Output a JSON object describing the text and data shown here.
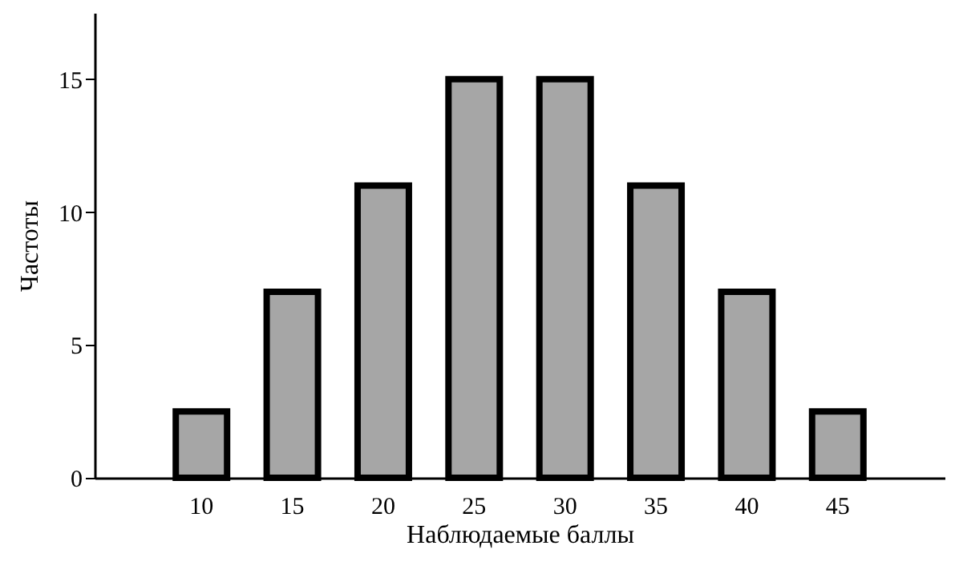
{
  "chart_data": {
    "type": "bar",
    "xlabel": "Наблюдаемые баллы",
    "ylabel": "Частоты",
    "categories": [
      "10",
      "15",
      "20",
      "25",
      "30",
      "35",
      "40",
      "45"
    ],
    "values": [
      2.5,
      7,
      11,
      15,
      15,
      11,
      7,
      2.5
    ],
    "color": "#a6a6a6",
    "ylim": [
      0,
      17.5
    ],
    "yticks": [
      0,
      5,
      10,
      15
    ],
    "grid": false
  }
}
